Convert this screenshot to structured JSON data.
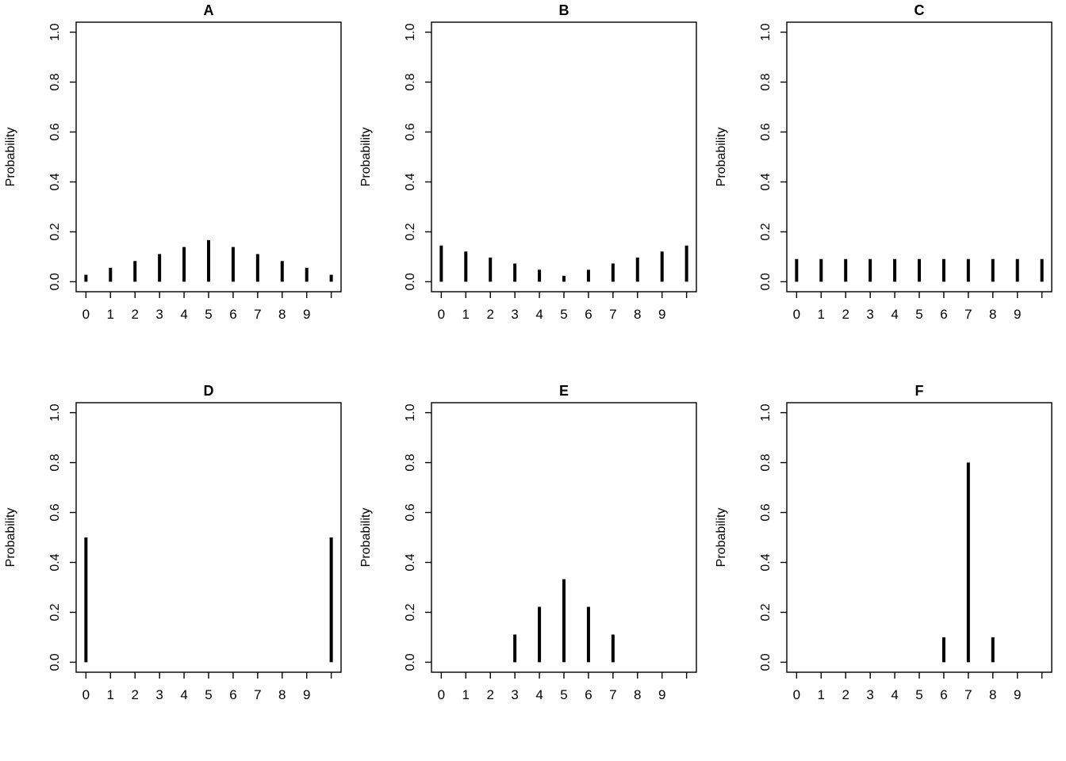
{
  "page": {
    "background": "#ffffff",
    "foreground": "#000000",
    "description": "Grid of six probability mass function spike plots labelled A-F"
  },
  "chart_data": [
    {
      "type": "bar",
      "style": "spike",
      "title": "A",
      "xlabel": "",
      "ylabel": "Probability",
      "x": [
        0,
        1,
        2,
        3,
        4,
        5,
        6,
        7,
        8,
        9,
        10
      ],
      "values": [
        0.028,
        0.056,
        0.083,
        0.111,
        0.139,
        0.167,
        0.139,
        0.111,
        0.083,
        0.056,
        0.028
      ],
      "xlim": [
        0,
        10
      ],
      "ylim": [
        0,
        1
      ],
      "x_ticks": [
        0,
        1,
        2,
        3,
        4,
        5,
        6,
        7,
        8,
        9,
        10
      ],
      "x_tick_labels": [
        "0",
        "1",
        "2",
        "3",
        "4",
        "5",
        "6",
        "7",
        "8",
        "9",
        ""
      ],
      "y_ticks": [
        0,
        0.2,
        0.4,
        0.6,
        0.8,
        1
      ],
      "y_tick_labels": [
        "0.0",
        "0.2",
        "0.4",
        "0.6",
        "0.8",
        "1.0"
      ],
      "grid": false,
      "legend": false
    },
    {
      "type": "bar",
      "style": "spike",
      "title": "B",
      "xlabel": "",
      "ylabel": "Probability",
      "x": [
        0,
        1,
        2,
        3,
        4,
        5,
        6,
        7,
        8,
        9,
        10
      ],
      "values": [
        0.145,
        0.121,
        0.097,
        0.073,
        0.048,
        0.024,
        0.048,
        0.073,
        0.097,
        0.121,
        0.145
      ],
      "xlim": [
        0,
        10
      ],
      "ylim": [
        0,
        1
      ],
      "x_ticks": [
        0,
        1,
        2,
        3,
        4,
        5,
        6,
        7,
        8,
        9,
        10
      ],
      "x_tick_labels": [
        "0",
        "1",
        "2",
        "3",
        "4",
        "5",
        "6",
        "7",
        "8",
        "9",
        ""
      ],
      "y_ticks": [
        0,
        0.2,
        0.4,
        0.6,
        0.8,
        1
      ],
      "y_tick_labels": [
        "0.0",
        "0.2",
        "0.4",
        "0.6",
        "0.8",
        "1.0"
      ],
      "grid": false,
      "legend": false
    },
    {
      "type": "bar",
      "style": "spike",
      "title": "C",
      "xlabel": "",
      "ylabel": "Probability",
      "x": [
        0,
        1,
        2,
        3,
        4,
        5,
        6,
        7,
        8,
        9,
        10
      ],
      "values": [
        0.091,
        0.091,
        0.091,
        0.091,
        0.091,
        0.091,
        0.091,
        0.091,
        0.091,
        0.091,
        0.091
      ],
      "xlim": [
        0,
        10
      ],
      "ylim": [
        0,
        1
      ],
      "x_ticks": [
        0,
        1,
        2,
        3,
        4,
        5,
        6,
        7,
        8,
        9,
        10
      ],
      "x_tick_labels": [
        "0",
        "1",
        "2",
        "3",
        "4",
        "5",
        "6",
        "7",
        "8",
        "9",
        ""
      ],
      "y_ticks": [
        0,
        0.2,
        0.4,
        0.6,
        0.8,
        1
      ],
      "y_tick_labels": [
        "0.0",
        "0.2",
        "0.4",
        "0.6",
        "0.8",
        "1.0"
      ],
      "grid": false,
      "legend": false
    },
    {
      "type": "bar",
      "style": "spike",
      "title": "D",
      "xlabel": "",
      "ylabel": "Probability",
      "x": [
        0,
        1,
        2,
        3,
        4,
        5,
        6,
        7,
        8,
        9,
        10
      ],
      "values": [
        0.5,
        0,
        0,
        0,
        0,
        0,
        0,
        0,
        0,
        0,
        0.5
      ],
      "xlim": [
        0,
        10
      ],
      "ylim": [
        0,
        1
      ],
      "x_ticks": [
        0,
        1,
        2,
        3,
        4,
        5,
        6,
        7,
        8,
        9,
        10
      ],
      "x_tick_labels": [
        "0",
        "1",
        "2",
        "3",
        "4",
        "5",
        "6",
        "7",
        "8",
        "9",
        ""
      ],
      "y_ticks": [
        0,
        0.2,
        0.4,
        0.6,
        0.8,
        1
      ],
      "y_tick_labels": [
        "0.0",
        "0.2",
        "0.4",
        "0.6",
        "0.8",
        "1.0"
      ],
      "grid": false,
      "legend": false
    },
    {
      "type": "bar",
      "style": "spike",
      "title": "E",
      "xlabel": "",
      "ylabel": "Probability",
      "x": [
        0,
        1,
        2,
        3,
        4,
        5,
        6,
        7,
        8,
        9,
        10
      ],
      "values": [
        0,
        0,
        0,
        0.111,
        0.222,
        0.333,
        0.222,
        0.111,
        0,
        0,
        0
      ],
      "xlim": [
        0,
        10
      ],
      "ylim": [
        0,
        1
      ],
      "x_ticks": [
        0,
        1,
        2,
        3,
        4,
        5,
        6,
        7,
        8,
        9,
        10
      ],
      "x_tick_labels": [
        "0",
        "1",
        "2",
        "3",
        "4",
        "5",
        "6",
        "7",
        "8",
        "9",
        ""
      ],
      "y_ticks": [
        0,
        0.2,
        0.4,
        0.6,
        0.8,
        1
      ],
      "y_tick_labels": [
        "0.0",
        "0.2",
        "0.4",
        "0.6",
        "0.8",
        "1.0"
      ],
      "grid": false,
      "legend": false
    },
    {
      "type": "bar",
      "style": "spike",
      "title": "F",
      "xlabel": "",
      "ylabel": "Probability",
      "x": [
        0,
        1,
        2,
        3,
        4,
        5,
        6,
        7,
        8,
        9,
        10
      ],
      "values": [
        0,
        0,
        0,
        0,
        0,
        0,
        0.1,
        0.8,
        0.1,
        0,
        0
      ],
      "xlim": [
        0,
        10
      ],
      "ylim": [
        0,
        1
      ],
      "x_ticks": [
        0,
        1,
        2,
        3,
        4,
        5,
        6,
        7,
        8,
        9,
        10
      ],
      "x_tick_labels": [
        "0",
        "1",
        "2",
        "3",
        "4",
        "5",
        "6",
        "7",
        "8",
        "9",
        ""
      ],
      "y_ticks": [
        0,
        0.2,
        0.4,
        0.6,
        0.8,
        1
      ],
      "y_tick_labels": [
        "0.0",
        "0.2",
        "0.4",
        "0.6",
        "0.8",
        "1.0"
      ],
      "grid": false,
      "legend": false
    }
  ]
}
